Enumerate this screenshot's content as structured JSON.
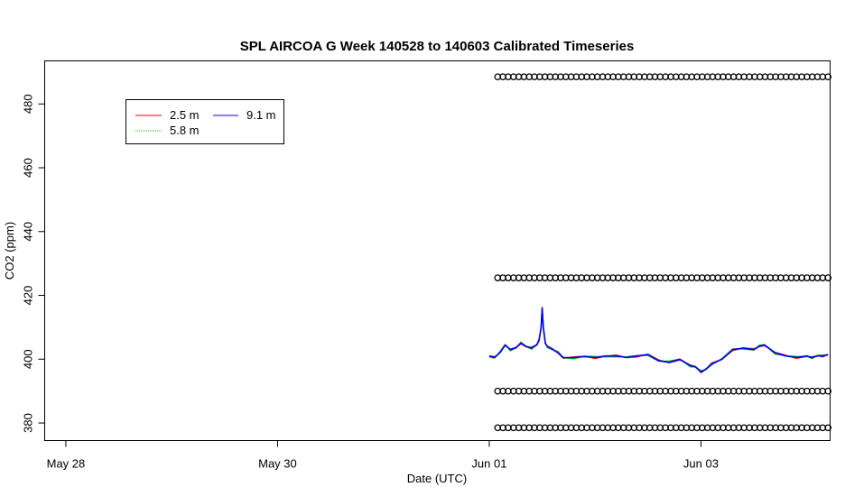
{
  "chart_data": {
    "type": "line",
    "title": "SPL AIRCOA G  Week 140528 to 140603  Calibrated Timeseries",
    "xlabel": "Date (UTC)",
    "ylabel": "CO2 (ppm)",
    "x_ticks": [
      "May 28",
      "May 30",
      "Jun 01",
      "Jun 03"
    ],
    "x_tick_days": [
      0,
      2,
      4,
      6
    ],
    "y_ticks": [
      380,
      400,
      420,
      440,
      460,
      480
    ],
    "xlim": [
      -0.2,
      7.22
    ],
    "ylim": [
      374.5,
      493.5
    ],
    "grid": false,
    "legend": {
      "position": "top-left",
      "entries": [
        {
          "label": "2.5 m",
          "color": "#ff0000"
        },
        {
          "label": "5.8 m",
          "color": "#00c000"
        },
        {
          "label": "9.1 m",
          "color": "#0000ff"
        }
      ]
    },
    "series": [
      {
        "name": "2.5 m",
        "color": "#ff0000",
        "offset": 0.3
      },
      {
        "name": "5.8 m",
        "color": "#00c000",
        "offset": -0.4
      },
      {
        "name": "9.1 m",
        "color": "#0000ff",
        "offset": 0.0
      }
    ],
    "co2_profile": {
      "x": [
        4.0,
        4.05,
        4.1,
        4.15,
        4.2,
        4.25,
        4.3,
        4.35,
        4.4,
        4.45,
        4.47,
        4.49,
        4.5,
        4.51,
        4.53,
        4.55,
        4.6,
        4.65,
        4.7,
        4.8,
        4.9,
        5.0,
        5.1,
        5.2,
        5.3,
        5.4,
        5.5,
        5.6,
        5.7,
        5.8,
        5.9,
        5.95,
        6.0,
        6.05,
        6.1,
        6.2,
        6.3,
        6.4,
        6.5,
        6.55,
        6.6,
        6.7,
        6.8,
        6.9,
        7.0,
        7.05,
        7.1,
        7.15,
        7.2
      ],
      "y": [
        401,
        400.5,
        402,
        404.5,
        403,
        403.5,
        405,
        404,
        403.5,
        404.5,
        406,
        410,
        416,
        410,
        405,
        404,
        403,
        402,
        400.5,
        400.5,
        400.8,
        400.5,
        401,
        401,
        400.5,
        401,
        401.5,
        399.5,
        399,
        400,
        398,
        397.5,
        396,
        397,
        398.5,
        400,
        403,
        403.5,
        403,
        404,
        404.5,
        402,
        401,
        400.5,
        401,
        400.5,
        401,
        401,
        401.5
      ]
    },
    "calibration_markers": {
      "x_start": 4.08,
      "x_end": 7.2,
      "levels": [
        {
          "y": 488.5,
          "count": 64
        },
        {
          "y": 425.5,
          "count": 64
        },
        {
          "y": 390,
          "count": 64
        },
        {
          "y": 378.5,
          "count": 64
        }
      ]
    }
  }
}
